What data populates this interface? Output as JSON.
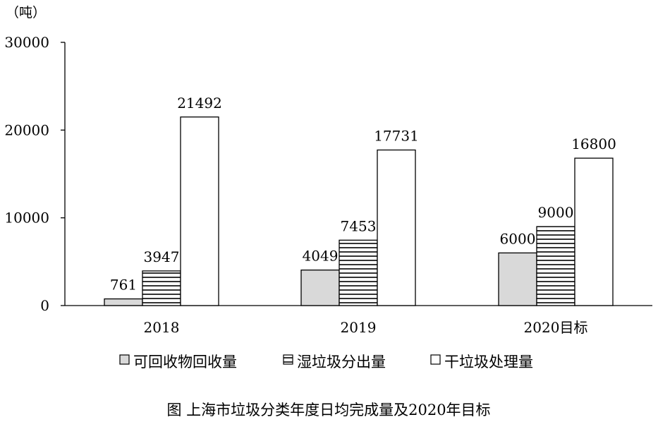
{
  "chart_data": {
    "type": "bar",
    "unit": "（吨）",
    "caption": "图  上海市垃圾分类年度日均完成量及2020年目标",
    "categories": [
      "2018",
      "2019",
      "2020目标"
    ],
    "series": [
      {
        "name": "可回收物回收量",
        "values": [
          761,
          4049,
          6000
        ],
        "color": "#d9d9d9"
      },
      {
        "name": "湿垃圾分出量",
        "values": [
          3947,
          7453,
          9000
        ],
        "color": "#ffffff",
        "pattern": "horizontal-stripes"
      },
      {
        "name": "干垃圾处理量",
        "values": [
          21492,
          17731,
          16800
        ],
        "color": "#ffffff"
      }
    ],
    "value_labels": [
      [
        "761",
        "3947",
        "21492"
      ],
      [
        "4049",
        "7453",
        "17731"
      ],
      [
        "6000",
        "9000",
        "16800"
      ]
    ],
    "ylim": [
      0,
      30000
    ],
    "yticks": [
      "0",
      "10000",
      "20000",
      "30000"
    ],
    "yticks_values": [
      0,
      10000,
      20000,
      30000
    ],
    "legend_position": "bottom",
    "grid": false
  }
}
